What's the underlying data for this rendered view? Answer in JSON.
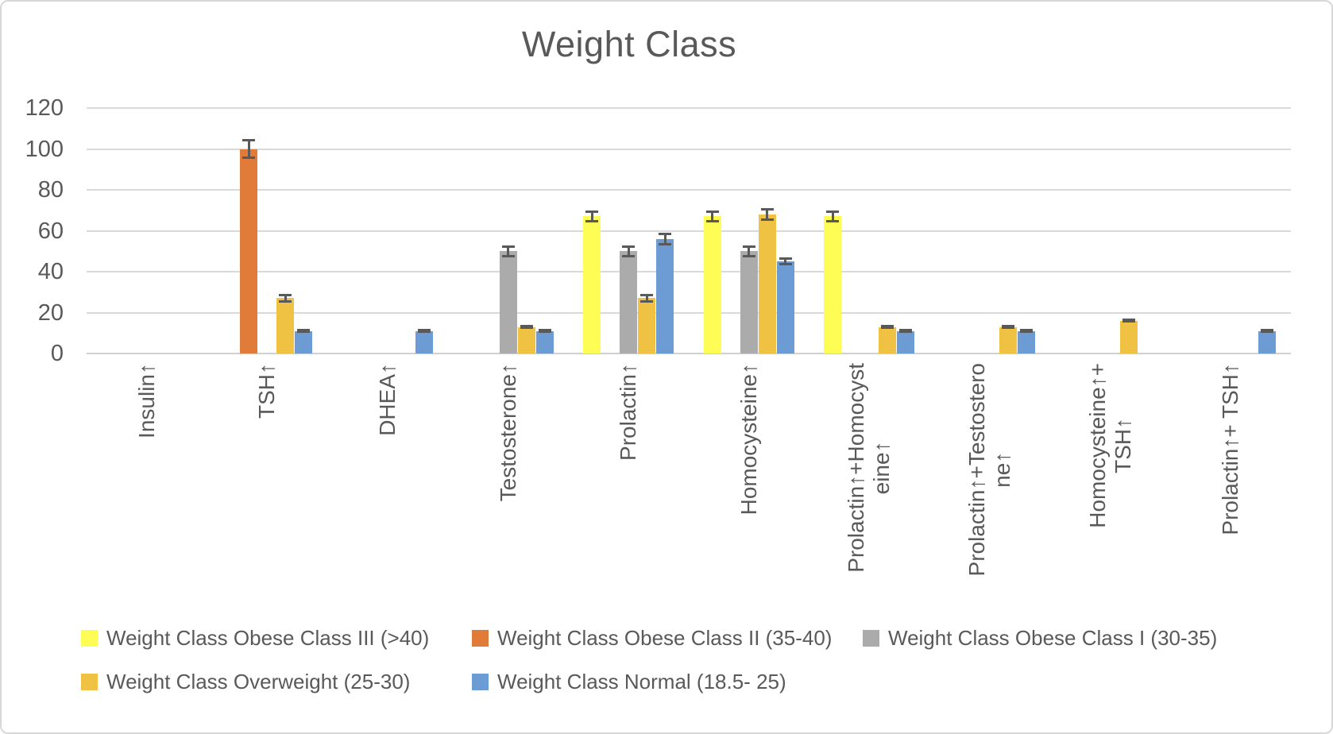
{
  "chart_data": {
    "type": "bar",
    "title": "Weight Class",
    "grid": true,
    "error_bars": true,
    "legend_position": "bottom",
    "ylim": [
      0,
      120
    ],
    "yticks": [
      0,
      20,
      40,
      60,
      80,
      100,
      120
    ],
    "xlabel": "",
    "ylabel": "",
    "categories": [
      "Insulin↑",
      "TSH↑",
      "DHEA↑",
      "Testosterone↑",
      "Prolactin↑",
      "Homocysteine↑",
      "Prolactin↑+Homocysteine↑",
      "Prolactin↑+Testosterone↑",
      "Homocysteine↑+ TSH↑",
      "Prolactin↑+ TSH↑"
    ],
    "category_display_lines": [
      [
        "Insulin↑"
      ],
      [
        "TSH↑"
      ],
      [
        "DHEA↑"
      ],
      [
        "Testosterone↑"
      ],
      [
        "Prolactin↑"
      ],
      [
        "Homocysteine↑"
      ],
      [
        "Prolactin↑+Homocyst",
        "eine↑"
      ],
      [
        "Prolactin↑+Testostero",
        "ne↑"
      ],
      [
        "Homocysteine↑+",
        "TSH↑"
      ],
      [
        "Prolactin↑+ TSH↑"
      ]
    ],
    "series": [
      {
        "name": "Weight Class Obese Class III (>40)",
        "color": "#fdfd55",
        "values": [
          0,
          0,
          0,
          0,
          67,
          67,
          67,
          0,
          0,
          0
        ],
        "errors": [
          0,
          0,
          0,
          0,
          3,
          3,
          3,
          0,
          0,
          0
        ]
      },
      {
        "name": "Weight Class Obese Class II (35-40)",
        "color": "#e07b3a",
        "values": [
          0,
          100,
          0,
          0,
          0,
          0,
          0,
          0,
          0,
          0
        ],
        "errors": [
          0,
          5,
          0,
          0,
          0,
          0,
          0,
          0,
          0,
          0
        ]
      },
      {
        "name": "Weight Class Obese Class I (30-35)",
        "color": "#ababab",
        "values": [
          0,
          0,
          0,
          50,
          50,
          50,
          0,
          0,
          0,
          0
        ],
        "errors": [
          0,
          0,
          0,
          3,
          3,
          3,
          0,
          0,
          0,
          0
        ]
      },
      {
        "name": "Weight Class Overweight (25-30)",
        "color": "#efc243",
        "values": [
          0,
          27,
          0,
          13,
          27,
          68,
          13,
          13,
          16,
          0
        ],
        "errors": [
          0,
          2,
          0,
          1,
          2,
          3,
          1,
          1,
          1,
          0
        ]
      },
      {
        "name": "Weight Class Normal (18.5- 25)",
        "color": "#6d9bd3",
        "values": [
          0,
          11,
          11,
          11,
          56,
          45,
          11,
          11,
          0,
          11
        ],
        "errors": [
          0,
          1,
          1,
          1,
          3,
          2,
          1,
          1,
          0,
          1
        ]
      }
    ],
    "colors": {
      "text": "#595959",
      "gridline": "#d9d9d9",
      "error_bar": "#595959"
    }
  }
}
